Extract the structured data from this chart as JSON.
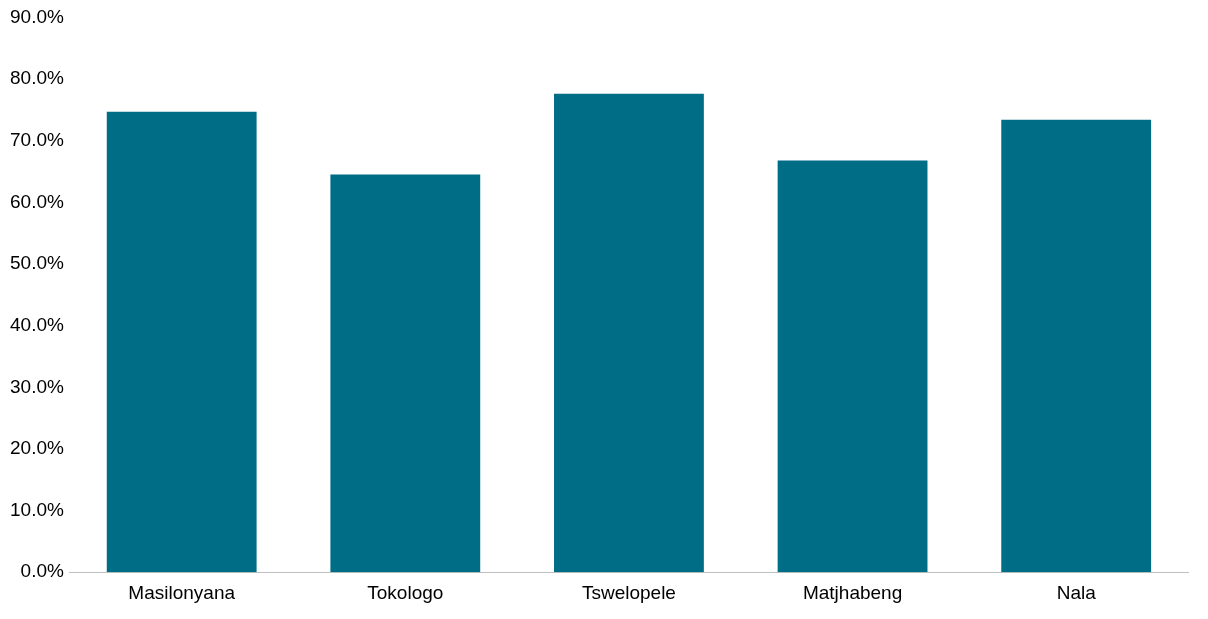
{
  "chart_data": {
    "type": "bar",
    "categories": [
      "Masilonyana",
      "Tokologo",
      "Tswelopele",
      "Matjhabeng",
      "Nala"
    ],
    "values": [
      74.7,
      64.5,
      77.6,
      66.8,
      73.4
    ],
    "color": "#006d87",
    "ylim": [
      0,
      90
    ],
    "yticks": [
      {
        "value": 0,
        "label": "0.0%"
      },
      {
        "value": 10,
        "label": "10.0%"
      },
      {
        "value": 20,
        "label": "20.0%"
      },
      {
        "value": 30,
        "label": "30.0%"
      },
      {
        "value": 40,
        "label": "40.0%"
      },
      {
        "value": 50,
        "label": "50.0%"
      },
      {
        "value": 60,
        "label": "60.0%"
      },
      {
        "value": 70,
        "label": "70.0%"
      },
      {
        "value": 80,
        "label": "80.0%"
      },
      {
        "value": 90,
        "label": "90.0%"
      }
    ],
    "grid": false,
    "legend": false
  }
}
